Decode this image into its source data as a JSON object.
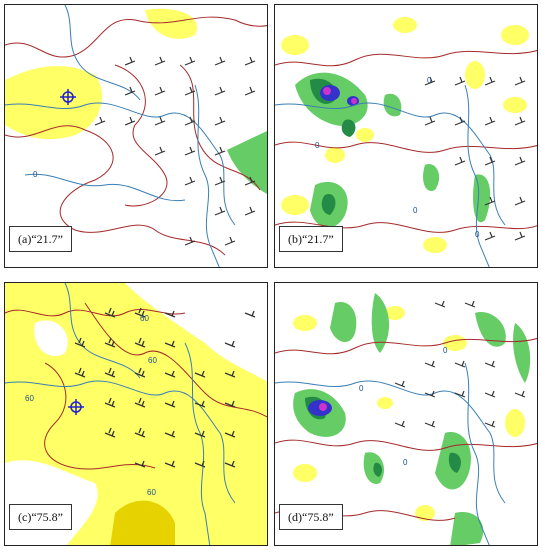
{
  "figure": {
    "panels": [
      {
        "id": "a",
        "label": "(a)“21.7”",
        "contour_labels": [
          "0"
        ]
      },
      {
        "id": "b",
        "label": "(b)“21.7”",
        "contour_labels": [
          "0",
          "0",
          "0",
          "0"
        ]
      },
      {
        "id": "c",
        "label": "(c)“75.8”",
        "contour_labels": [
          "60",
          "60",
          "60",
          "60"
        ]
      },
      {
        "id": "d",
        "label": "(d)“75.8”",
        "contour_labels": [
          "0",
          "0",
          "0"
        ]
      }
    ],
    "colors": {
      "yellow_fill": "#ffff66",
      "light_green": "#66cc66",
      "dark_green": "#238b45",
      "blue_core": "#3333cc",
      "magenta_core": "#cc33cc",
      "red_contour": "#a52a2a",
      "blue_river": "#3a7fb5",
      "barb": "#333333"
    },
    "markers": [
      "crosshair-marker"
    ]
  }
}
